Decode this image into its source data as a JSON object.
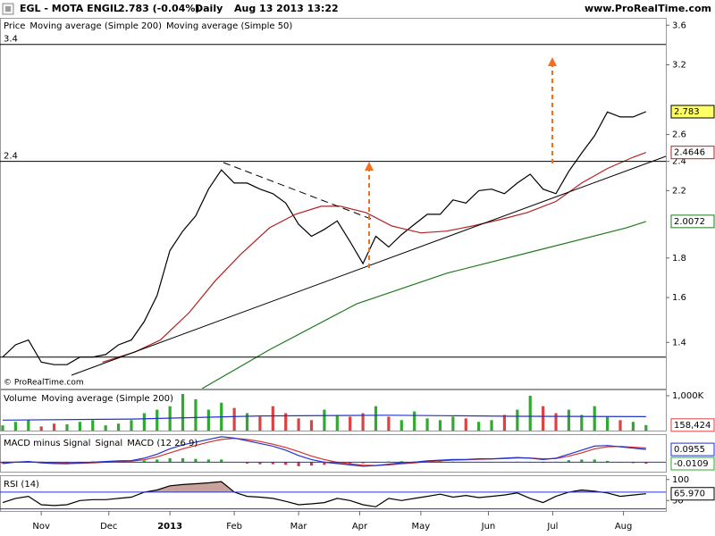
{
  "header": {
    "title": "EGL - MOTA ENGIL",
    "quote": "2.783 (-0.04%)",
    "period": "Daily",
    "timestamp": "Aug 13 2013 13:22",
    "source": "www.ProRealTime.com",
    "watermark": "© ProRealTime.com"
  },
  "chart_data": [
    {
      "type": "line",
      "log": true,
      "xlim": [
        0,
        202
      ],
      "ylim": [
        1.22,
        3.68
      ],
      "yticks": [
        1.4,
        1.6,
        1.8,
        2.2,
        2.4,
        2.6,
        3.2,
        3.6
      ],
      "levels": [
        3.4,
        2.4,
        1.34
      ],
      "level_labels": [
        "3.4",
        "2.4",
        null
      ],
      "x": [
        0,
        4,
        8,
        12,
        16,
        20,
        24,
        28,
        32,
        36,
        40,
        44,
        48,
        52,
        56,
        60,
        64,
        68,
        72,
        76,
        80,
        84,
        88,
        92,
        96,
        100,
        104,
        108,
        112,
        116,
        120,
        124,
        128,
        132,
        136,
        140,
        144,
        148,
        152,
        156,
        160,
        164,
        168,
        172,
        176,
        180,
        184,
        188,
        192,
        196,
        200
      ],
      "series": [
        {
          "name": "Price",
          "color": "#000000",
          "style": "line",
          "box": true,
          "box_fill": "#ffff66",
          "values": [
            1.34,
            1.39,
            1.41,
            1.32,
            1.31,
            1.31,
            1.34,
            1.34,
            1.35,
            1.39,
            1.41,
            1.49,
            1.61,
            1.84,
            1.95,
            2.04,
            2.21,
            2.34,
            2.25,
            2.25,
            2.21,
            2.18,
            2.12,
            1.99,
            1.92,
            1.96,
            2.01,
            1.89,
            1.77,
            1.92,
            1.86,
            1.93,
            1.99,
            2.05,
            2.05,
            2.14,
            2.12,
            2.2,
            2.21,
            2.18,
            2.25,
            2.31,
            2.21,
            2.18,
            2.33,
            2.46,
            2.59,
            2.78,
            2.74,
            2.74,
            2.783
          ]
        },
        {
          "name": "Moving average (Simple 200)",
          "color": "#1e7a1e",
          "style": "line",
          "box": true,
          "x": [
            62,
            83,
            110,
            138,
            166,
            194,
            200
          ],
          "values": [
            1.22,
            1.37,
            1.57,
            1.72,
            1.84,
            1.97,
            2.0072
          ]
        },
        {
          "name": "Moving average (Simple 50)",
          "color": "#b22222",
          "style": "line",
          "box": true,
          "x": [
            31,
            41,
            49,
            58,
            66,
            74,
            83,
            91,
            99,
            105,
            113,
            121,
            130,
            138,
            146,
            155,
            163,
            172,
            180,
            188,
            196,
            200
          ],
          "values": [
            1.32,
            1.36,
            1.41,
            1.53,
            1.68,
            1.82,
            1.97,
            2.05,
            2.1,
            2.1,
            2.06,
            1.98,
            1.94,
            1.95,
            1.98,
            2.02,
            2.06,
            2.13,
            2.25,
            2.35,
            2.43,
            2.4646
          ]
        }
      ]
    },
    {
      "type": "bar",
      "xlim": [
        0,
        202
      ],
      "ylim": [
        0,
        1154000
      ],
      "yticks": [
        {
          "value": 1000000,
          "label": "1,000K"
        }
      ],
      "up_color": "#2eaa2e",
      "down_color": "#e04040",
      "x": [
        0,
        4,
        8,
        12,
        16,
        20,
        24,
        28,
        32,
        36,
        40,
        44,
        48,
        52,
        56,
        60,
        64,
        68,
        72,
        76,
        80,
        84,
        88,
        92,
        96,
        100,
        104,
        108,
        112,
        116,
        120,
        124,
        128,
        132,
        136,
        140,
        144,
        148,
        152,
        156,
        160,
        164,
        168,
        172,
        176,
        180,
        184,
        188,
        192,
        196,
        200
      ],
      "series": [
        {
          "name": "Volume",
          "color": "#e04040",
          "style": "bar",
          "box": true,
          "values": [
            150000,
            250000,
            300000,
            120000,
            200000,
            180000,
            250000,
            300000,
            150000,
            200000,
            300000,
            500000,
            600000,
            700000,
            1050000,
            900000,
            600000,
            800000,
            650000,
            500000,
            400000,
            700000,
            500000,
            350000,
            300000,
            600000,
            450000,
            400000,
            500000,
            700000,
            400000,
            300000,
            550000,
            350000,
            300000,
            400000,
            350000,
            250000,
            300000,
            450000,
            600000,
            1000000,
            700000,
            500000,
            600000,
            450000,
            700000,
            400000,
            300000,
            250000,
            158424
          ],
          "value_labels": [
            null,
            null,
            null,
            null,
            null,
            null,
            null,
            null,
            null,
            null,
            null,
            null,
            null,
            null,
            null,
            null,
            null,
            null,
            null,
            null,
            null,
            null,
            null,
            null,
            null,
            null,
            null,
            null,
            null,
            null,
            null,
            null,
            null,
            null,
            null,
            null,
            null,
            null,
            null,
            null,
            null,
            null,
            null,
            null,
            null,
            null,
            null,
            null,
            null,
            null,
            "158,424"
          ]
        },
        {
          "name": "Moving average (Simple 200)",
          "color": "#2233cc",
          "style": "line",
          "x": [
            0,
            40,
            80,
            120,
            160,
            200
          ],
          "values": [
            300000,
            330000,
            420000,
            440000,
            410000,
            400000
          ]
        }
      ]
    },
    {
      "type": "bar",
      "xlim": [
        0,
        202
      ],
      "ylim": [
        -0.071,
        0.203
      ],
      "zero_line": true,
      "up_color": "#2eaa2e",
      "down_color": "#cc3366",
      "x": [
        0,
        4,
        8,
        12,
        16,
        20,
        24,
        28,
        32,
        36,
        40,
        44,
        48,
        52,
        56,
        60,
        64,
        68,
        72,
        76,
        80,
        84,
        88,
        92,
        96,
        100,
        104,
        108,
        112,
        116,
        120,
        124,
        128,
        132,
        136,
        140,
        144,
        148,
        152,
        156,
        160,
        164,
        168,
        172,
        176,
        180,
        184,
        188,
        192,
        196,
        200
      ],
      "series": [
        {
          "name": "MACD minus Signal",
          "color": "#2eaa2e",
          "style": "bar",
          "signed": true,
          "box": true,
          "values": [
            -0.01,
            0,
            0.005,
            -0.005,
            -0.005,
            -0.004,
            0.003,
            0.005,
            0.005,
            0.005,
            0.004,
            0.012,
            0.02,
            0.03,
            0.03,
            0.025,
            0.02,
            0.02,
            0.002,
            -0.01,
            -0.015,
            -0.015,
            -0.02,
            -0.03,
            -0.025,
            -0.02,
            -0.01,
            -0.008,
            -0.008,
            0,
            0.005,
            0.007,
            0.005,
            0.006,
            0.005,
            0.004,
            0.002,
            0.003,
            0.001,
            0.003,
            0.004,
            -0.001,
            -0.005,
            0.003,
            0.015,
            0.02,
            0.02,
            0.01,
            -0.003,
            -0.007,
            -0.0109
          ]
        },
        {
          "name": "Signal",
          "color": "#d03030",
          "style": "line",
          "values": [
            0,
            0,
            0,
            0,
            -0.005,
            -0.008,
            -0.008,
            -0.005,
            0,
            0.005,
            0.008,
            0.018,
            0.04,
            0.07,
            0.1,
            0.125,
            0.15,
            0.17,
            0.178,
            0.17,
            0.155,
            0.135,
            0.11,
            0.08,
            0.045,
            0.02,
            0,
            -0.012,
            -0.022,
            -0.025,
            -0.02,
            -0.012,
            -0.005,
            0.004,
            0.01,
            0.016,
            0.018,
            0.022,
            0.024,
            0.027,
            0.031,
            0.031,
            0.025,
            0.027,
            0.045,
            0.07,
            0.1,
            0.115,
            0.118,
            0.112,
            0.1064
          ]
        },
        {
          "name": "MACD (12 26 9)",
          "color": "#2233cc",
          "style": "line",
          "box": true,
          "values": [
            -0.01,
            0,
            0.005,
            -0.005,
            -0.01,
            -0.012,
            -0.005,
            0,
            0.005,
            0.01,
            0.012,
            0.03,
            0.06,
            0.1,
            0.13,
            0.15,
            0.17,
            0.19,
            0.18,
            0.16,
            0.14,
            0.12,
            0.09,
            0.05,
            0.02,
            0,
            -0.01,
            -0.02,
            -0.03,
            -0.025,
            -0.015,
            -0.005,
            0,
            0.01,
            0.015,
            0.02,
            0.02,
            0.025,
            0.025,
            0.03,
            0.035,
            0.03,
            0.02,
            0.03,
            0.06,
            0.09,
            0.12,
            0.125,
            0.115,
            0.105,
            0.0955
          ]
        }
      ]
    },
    {
      "type": "line",
      "xlim": [
        0,
        202
      ],
      "ylim": [
        25,
        108
      ],
      "yticks": [
        50,
        100
      ],
      "levels": [
        70,
        30
      ],
      "level_color": "#2233cc",
      "x": [
        0,
        4,
        8,
        12,
        16,
        20,
        24,
        28,
        32,
        36,
        40,
        44,
        48,
        52,
        56,
        60,
        64,
        68,
        72,
        76,
        80,
        84,
        88,
        92,
        96,
        100,
        104,
        108,
        112,
        116,
        120,
        124,
        128,
        132,
        136,
        140,
        144,
        148,
        152,
        156,
        160,
        164,
        168,
        172,
        176,
        180,
        184,
        188,
        192,
        196,
        200
      ],
      "xticks": [
        {
          "value": 12,
          "label": "Nov"
        },
        {
          "value": 33,
          "label": "Dec"
        },
        {
          "value": 52,
          "label": "2013"
        },
        {
          "value": 72,
          "label": "Feb"
        },
        {
          "value": 92,
          "label": "Mar"
        },
        {
          "value": 111,
          "label": "Apr"
        },
        {
          "value": 130,
          "label": "May"
        },
        {
          "value": 151,
          "label": "Jun"
        },
        {
          "value": 171,
          "label": "Jul"
        },
        {
          "value": 193,
          "label": "Aug"
        }
      ],
      "series": [
        {
          "name": "RSI (14)",
          "color": "#000000",
          "style": "line",
          "box": true,
          "fill_above": 70,
          "fill_color": "#c9a29a",
          "values": [
            45,
            55,
            60,
            40,
            38,
            40,
            50,
            52,
            52,
            55,
            58,
            70,
            75,
            85,
            88,
            90,
            92,
            95,
            70,
            60,
            58,
            55,
            48,
            40,
            42,
            45,
            55,
            50,
            40,
            35,
            55,
            50,
            55,
            60,
            65,
            58,
            62,
            57,
            60,
            63,
            68,
            55,
            45,
            60,
            70,
            75,
            72,
            68,
            60,
            63,
            65.97
          ],
          "value_labels": [
            null,
            null,
            null,
            null,
            null,
            null,
            null,
            null,
            null,
            null,
            null,
            null,
            null,
            null,
            null,
            null,
            null,
            null,
            null,
            null,
            null,
            null,
            null,
            null,
            null,
            null,
            null,
            null,
            null,
            null,
            null,
            null,
            null,
            null,
            null,
            null,
            null,
            null,
            null,
            null,
            null,
            null,
            null,
            null,
            null,
            null,
            null,
            null,
            null,
            null,
            "65.970"
          ]
        }
      ]
    }
  ]
}
